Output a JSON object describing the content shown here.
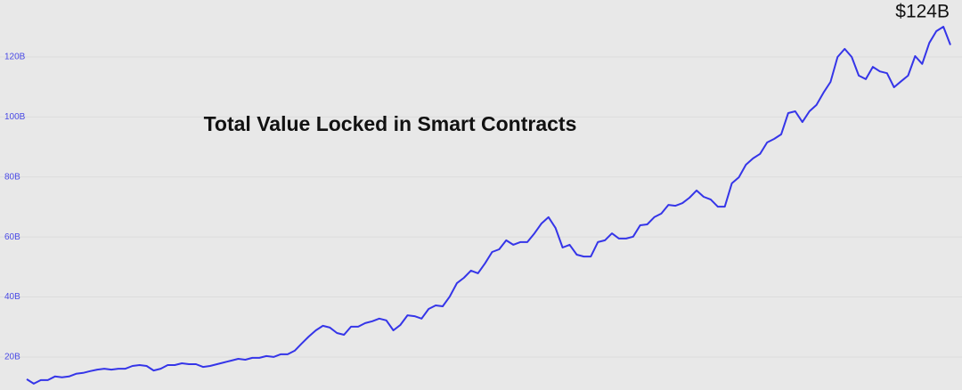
{
  "chart_data": {
    "type": "line",
    "title": "Total Value Locked in Smart Contracts",
    "annotation": "$124B",
    "color": "#3535e8",
    "grid": true,
    "ylim": [
      9,
      139
    ],
    "yticks": [
      {
        "value": 20,
        "label": "20B"
      },
      {
        "value": 40,
        "label": "40B"
      },
      {
        "value": 60,
        "label": "60B"
      },
      {
        "value": 80,
        "label": "80B"
      },
      {
        "value": 100,
        "label": "100B"
      },
      {
        "value": 120,
        "label": "120B"
      }
    ],
    "values": [
      12.6,
      11.1,
      12.3,
      12.3,
      13.5,
      13.2,
      13.5,
      14.4,
      14.7,
      15.3,
      15.8,
      16.1,
      15.8,
      16.1,
      16.1,
      17.0,
      17.3,
      17.0,
      15.5,
      16.1,
      17.3,
      17.3,
      17.9,
      17.6,
      17.6,
      16.7,
      17.0,
      17.6,
      18.2,
      18.8,
      19.4,
      19.1,
      19.7,
      19.7,
      20.3,
      20.0,
      20.9,
      20.9,
      22.1,
      24.5,
      26.8,
      28.9,
      30.4,
      29.8,
      28.0,
      27.4,
      30.1,
      30.1,
      31.3,
      31.9,
      32.8,
      32.2,
      28.9,
      30.7,
      33.9,
      33.6,
      32.8,
      36.0,
      37.2,
      36.9,
      40.2,
      44.6,
      46.4,
      48.8,
      47.9,
      51.2,
      55.0,
      55.9,
      58.9,
      57.4,
      58.3,
      58.3,
      61.2,
      64.5,
      66.6,
      63.0,
      56.5,
      57.4,
      54.1,
      53.5,
      53.5,
      58.3,
      58.9,
      61.2,
      59.5,
      59.5,
      60.1,
      63.9,
      64.2,
      66.6,
      67.8,
      70.7,
      70.4,
      71.3,
      73.1,
      75.5,
      73.4,
      72.5,
      70.1,
      70.1,
      77.9,
      79.9,
      84.1,
      86.2,
      87.7,
      91.5,
      92.7,
      94.2,
      101.3,
      101.9,
      98.3,
      101.9,
      104.0,
      108.1,
      111.7,
      120.0,
      122.7,
      120.0,
      113.8,
      112.6,
      116.7,
      115.2,
      114.6,
      109.9,
      111.9,
      113.8,
      120.3,
      117.7,
      124.7,
      128.6,
      130.1,
      124
    ]
  }
}
